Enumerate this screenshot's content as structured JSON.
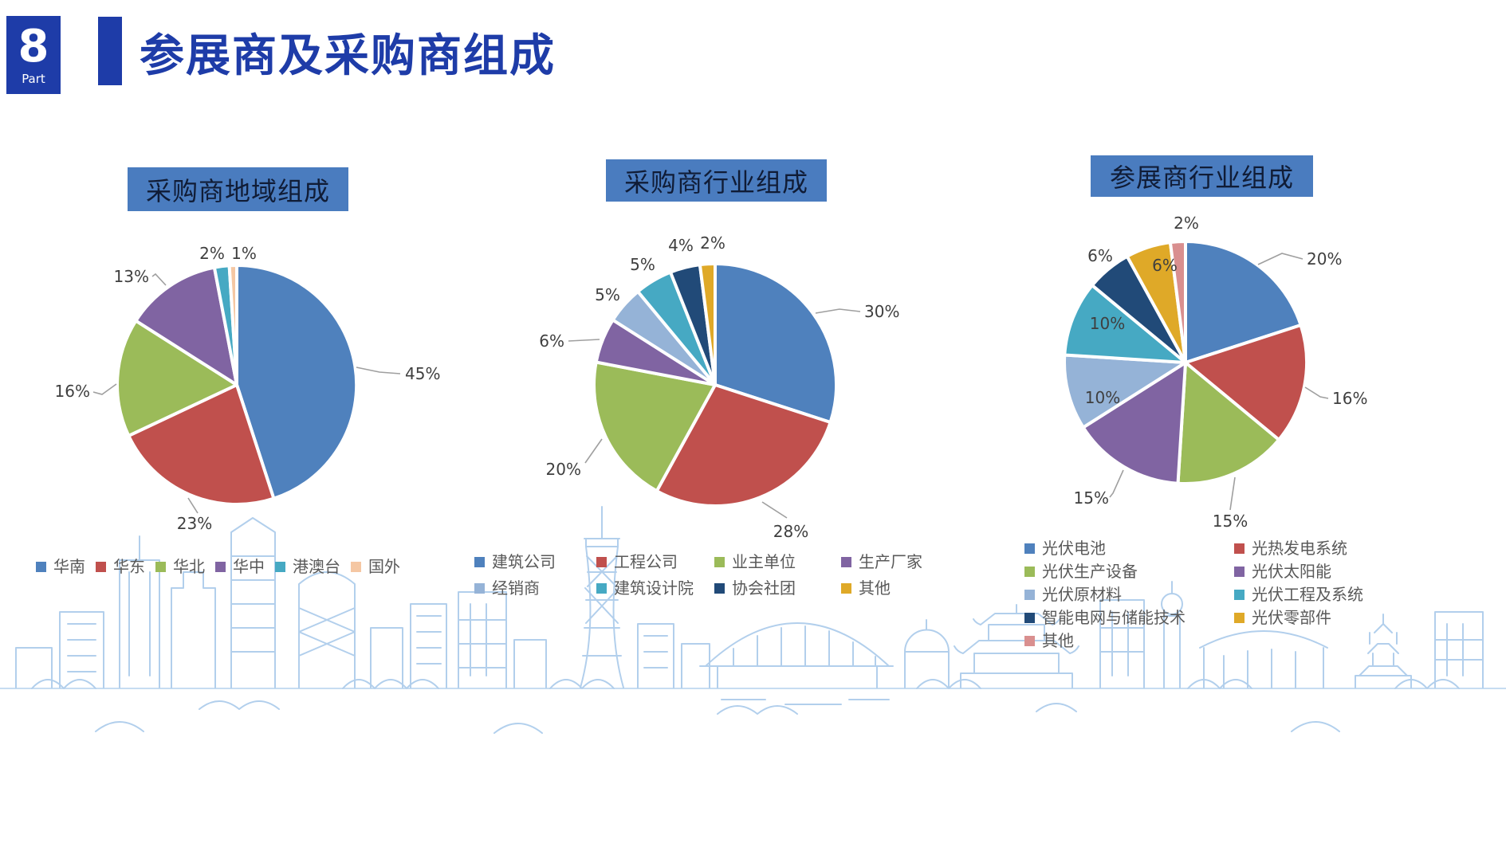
{
  "page": {
    "part_number": "8",
    "part_label": "Part",
    "title": "参展商及采购商组成"
  },
  "theme": {
    "header_blue": "#1e3ca8",
    "chart_title_bg": "#4a7cbf",
    "chart_title_text": "#101c36",
    "label_color": "#3f3f3f",
    "legend_text": "#595959",
    "leader_line": "#9f9f9f",
    "skyline_line": "#aecdec"
  },
  "chart_data": [
    {
      "type": "pie",
      "title": "采购商地域组成",
      "legend_position": "bottom",
      "categories": [
        "华南",
        "华东",
        "华北",
        "华中",
        "港澳台",
        "国外"
      ],
      "values": [
        45,
        23,
        16,
        13,
        2,
        1
      ],
      "labels": [
        "45%",
        "23%",
        "16%",
        "13%",
        "2%",
        "1%"
      ],
      "colors": [
        "#4F81BD",
        "#C0504D",
        "#9BBB59",
        "#8064A2",
        "#46A9C3",
        "#F5C7A3"
      ]
    },
    {
      "type": "pie",
      "title": "采购商行业组成",
      "legend_position": "bottom",
      "categories": [
        "建筑公司",
        "工程公司",
        "业主单位",
        "生产厂家",
        "经销商",
        "建筑设计院",
        "协会社团",
        "其他"
      ],
      "values": [
        30,
        28,
        20,
        6,
        5,
        5,
        4,
        2
      ],
      "labels": [
        "30%",
        "28%",
        "20%",
        "6%",
        "5%",
        "5%",
        "4%",
        "2%"
      ],
      "colors": [
        "#4F81BD",
        "#C0504D",
        "#9BBB59",
        "#8064A2",
        "#95B3D7",
        "#46A9C3",
        "#214A78",
        "#DFA928"
      ]
    },
    {
      "type": "pie",
      "title": "参展商行业组成",
      "legend_position": "bottom",
      "categories": [
        "光伏电池",
        "光热发电系统",
        "光伏生产设备",
        "光伏太阳能",
        "光伏原材料",
        "光伏工程及系统",
        "智能电网与储能技术",
        "光伏零部件",
        "其他"
      ],
      "values": [
        20,
        16,
        15,
        15,
        10,
        10,
        6,
        6,
        2
      ],
      "labels": [
        "20%",
        "16%",
        "15%",
        "15%",
        "10%",
        "10%",
        "6%",
        "6%",
        "2%"
      ],
      "colors": [
        "#4F81BD",
        "#C0504D",
        "#9BBB59",
        "#8064A2",
        "#95B3D7",
        "#46A9C3",
        "#214A78",
        "#DFA928",
        "#D98F8F"
      ]
    }
  ]
}
